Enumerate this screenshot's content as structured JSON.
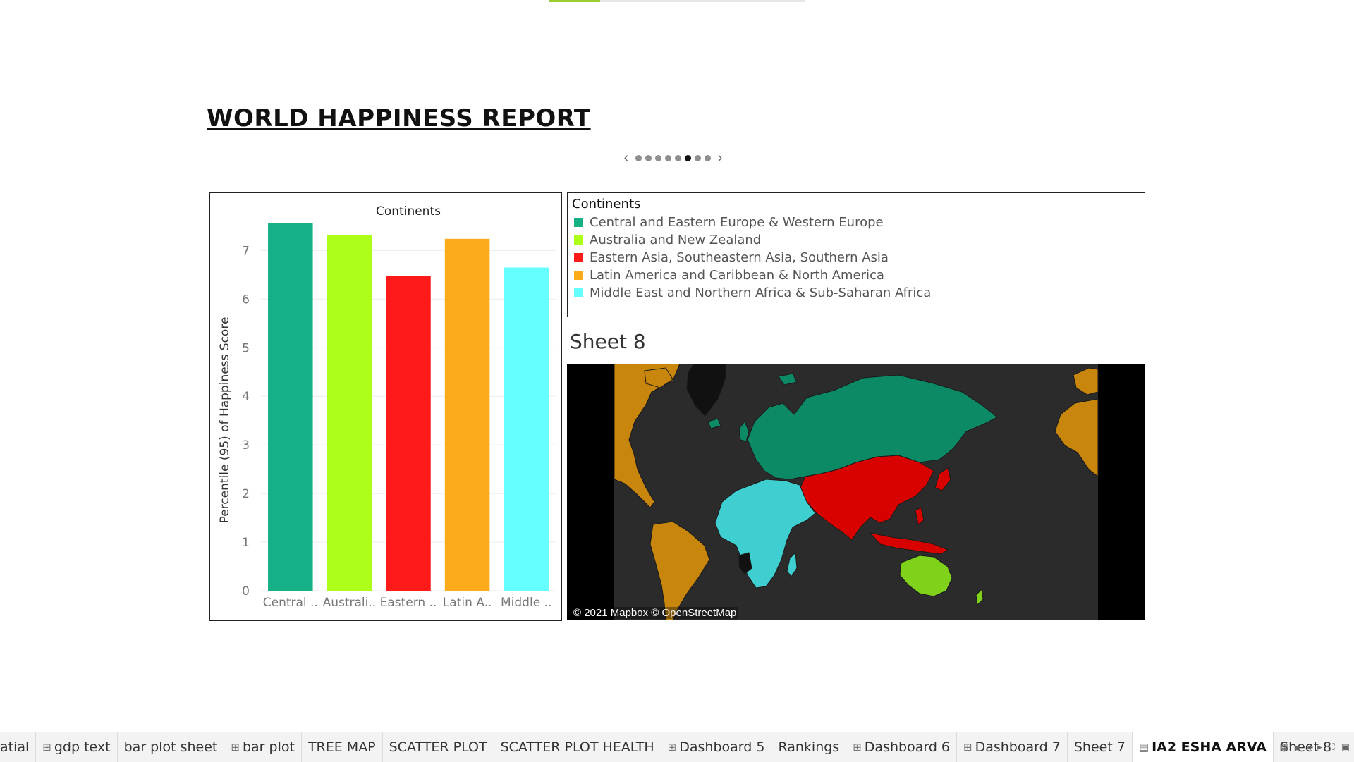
{
  "story": {
    "title": "WORLD HAPPINESS REPORT",
    "progress_fraction": 0.2,
    "nav": {
      "prev_icon": "chevron-left",
      "next_icon": "chevron-right",
      "dot_count": 8,
      "active_index": 5
    }
  },
  "chart_data": {
    "type": "bar",
    "title": "Continents",
    "xlabel": "",
    "ylabel": "Percentile (95) of Happiness Score",
    "categories": [
      "Central ..",
      "Australi..",
      "Eastern ..",
      "Latin A..",
      "Middle .."
    ],
    "values": [
      7.56,
      7.32,
      6.47,
      7.24,
      6.65
    ],
    "colors": [
      "#16b086",
      "#adff1a",
      "#ff1a1a",
      "#fcac1a",
      "#66ffff"
    ],
    "ylim": [
      0,
      7.6
    ],
    "yticks": [
      "0",
      "1",
      "2",
      "3",
      "4",
      "5",
      "6",
      "7"
    ],
    "grid": true,
    "legend": "none"
  },
  "legend": {
    "title": "Continents",
    "items": [
      {
        "label": "Central and Eastern Europe & Western Europe",
        "color": "#16b086"
      },
      {
        "label": "Australia and New Zealand",
        "color": "#adff1a"
      },
      {
        "label": "Eastern Asia, Southeastern Asia, Southern Asia",
        "color": "#ff1a1a"
      },
      {
        "label": "Latin America and Caribbean & North America",
        "color": "#fcac1a"
      },
      {
        "label": "Middle East and Northern Africa & Sub-Saharan Africa",
        "color": "#66ffff"
      }
    ]
  },
  "map": {
    "title": "Sheet 8",
    "attribution": "© 2021 Mapbox © OpenStreetMap",
    "colors": {
      "background": "#000000",
      "ocean": "#2b2b2b",
      "unassigned": "#111111",
      "europe": "#0c8a66",
      "australia": "#7fd11a",
      "asia": "#d90000",
      "americas": "#c8860d",
      "africa": "#3fcfd0"
    }
  },
  "tabs": [
    {
      "label": "atial",
      "icon": ""
    },
    {
      "label": "gdp text",
      "icon": "grid-icon"
    },
    {
      "label": "bar plot sheet",
      "icon": ""
    },
    {
      "label": "bar plot",
      "icon": "grid-icon"
    },
    {
      "label": "TREE MAP",
      "icon": ""
    },
    {
      "label": "SCATTER PLOT",
      "icon": ""
    },
    {
      "label": "SCATTER PLOT HEALTH",
      "icon": ""
    },
    {
      "label": "Dashboard 5",
      "icon": "grid-icon"
    },
    {
      "label": "Rankings",
      "icon": ""
    },
    {
      "label": "Dashboard 6",
      "icon": "grid-icon"
    },
    {
      "label": "Dashboard 7",
      "icon": "grid-icon"
    },
    {
      "label": "Sheet 7",
      "icon": ""
    },
    {
      "label": "IA2 ESHA ARVA",
      "icon": "book-icon",
      "active": true
    },
    {
      "label": "Sheet 8",
      "icon": ""
    }
  ],
  "tab_controls": [
    "filmstrip-icon",
    "single-tab-icon",
    "prev-sheet-icon",
    "next-sheet-icon",
    "fullscreen-icon",
    "presentation-icon"
  ]
}
